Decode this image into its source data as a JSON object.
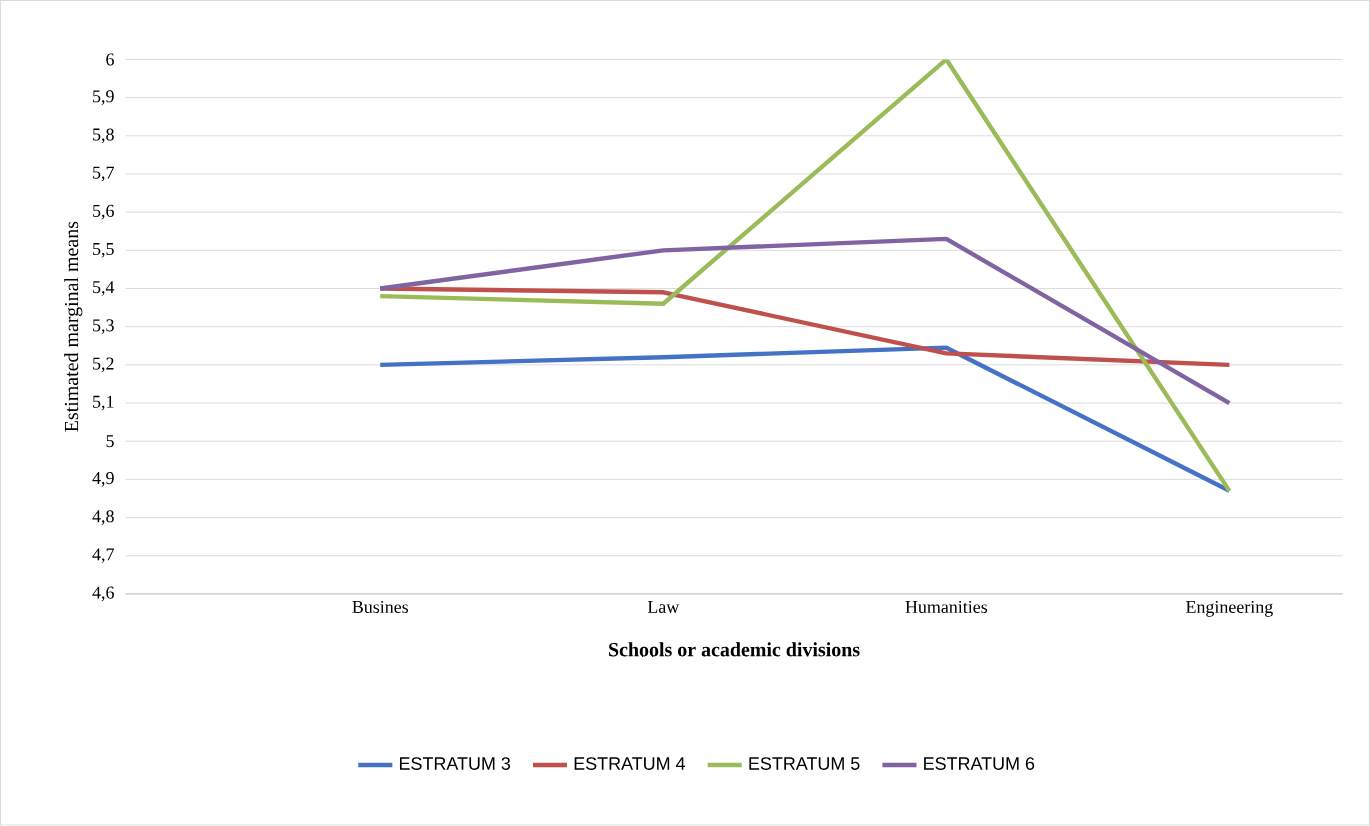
{
  "chart_data": {
    "type": "line",
    "xlabel": "Schools or academic divisions",
    "ylabel": "Estimated marginal means",
    "categories": [
      "Busines",
      "Law",
      "Humanities",
      "Engineering"
    ],
    "series": [
      {
        "name": "ESTRATUM 3",
        "color": "#4472c4",
        "values": [
          5.2,
          5.22,
          5.245,
          4.87
        ]
      },
      {
        "name": "ESTRATUM 4",
        "color": "#c0504d",
        "values": [
          5.4,
          5.39,
          5.23,
          5.2
        ]
      },
      {
        "name": "ESTRATUM 5",
        "color": "#9bbb59",
        "values": [
          5.38,
          5.36,
          6.0,
          4.87
        ]
      },
      {
        "name": "ESTRATUM 6",
        "color": "#8064a2",
        "values": [
          5.4,
          5.5,
          5.53,
          5.1
        ]
      }
    ],
    "ylim": [
      4.6,
      6.0
    ],
    "yticks": [
      {
        "value": 4.6,
        "label": "4,6"
      },
      {
        "value": 4.7,
        "label": "4,7"
      },
      {
        "value": 4.8,
        "label": "4,8"
      },
      {
        "value": 4.9,
        "label": "4,9"
      },
      {
        "value": 5.0,
        "label": "5"
      },
      {
        "value": 5.1,
        "label": "5,1"
      },
      {
        "value": 5.2,
        "label": "5,2"
      },
      {
        "value": 5.3,
        "label": "5,3"
      },
      {
        "value": 5.4,
        "label": "5,4"
      },
      {
        "value": 5.5,
        "label": "5,5"
      },
      {
        "value": 5.6,
        "label": "5,6"
      },
      {
        "value": 5.7,
        "label": "5,7"
      },
      {
        "value": 5.8,
        "label": "5,8"
      },
      {
        "value": 5.9,
        "label": "5,9"
      },
      {
        "value": 6,
        "label": "6"
      }
    ],
    "grid": "y",
    "legend": "bottom",
    "marker": "none",
    "line_style": "solid"
  }
}
